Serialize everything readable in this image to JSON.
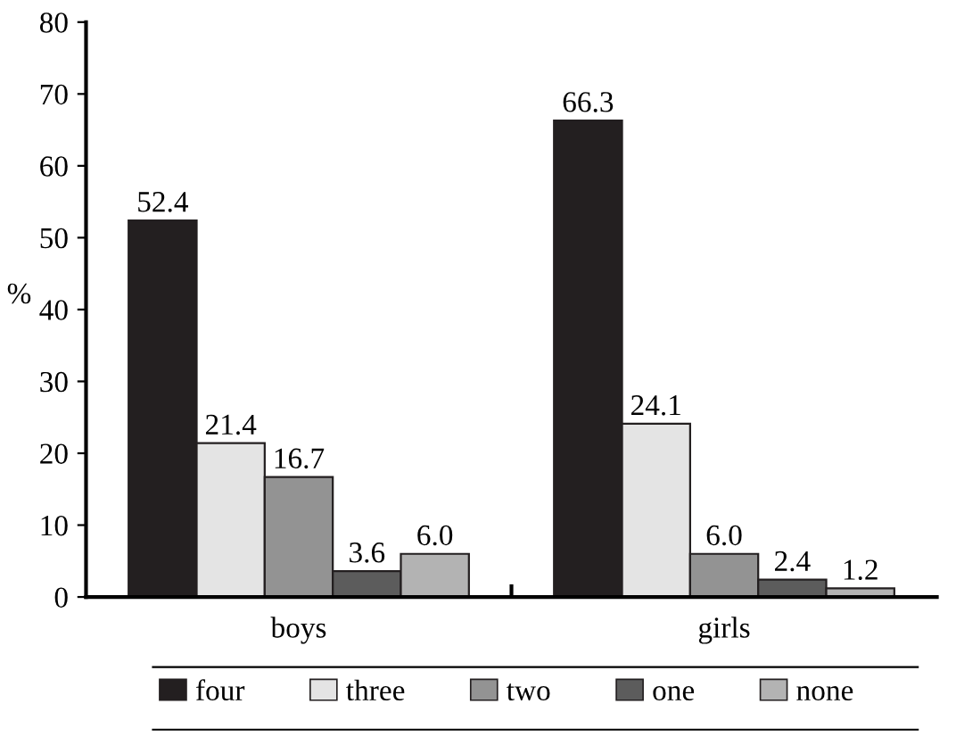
{
  "chart_data": {
    "type": "bar",
    "ylabel": "%",
    "categories": [
      "boys",
      "girls"
    ],
    "series": [
      {
        "name": "four",
        "color": "#231f20",
        "values": [
          52.4,
          66.3
        ],
        "value_labels": [
          "52.4",
          "66.3"
        ]
      },
      {
        "name": "three",
        "color": "#e4e4e4",
        "values": [
          21.4,
          24.1
        ],
        "value_labels": [
          "21.4",
          "24.1"
        ]
      },
      {
        "name": "two",
        "color": "#939393",
        "values": [
          16.7,
          6.0
        ],
        "value_labels": [
          "16.7",
          "6.0"
        ]
      },
      {
        "name": "one",
        "color": "#5c5c5c",
        "values": [
          3.6,
          2.4
        ],
        "value_labels": [
          "3.6",
          "2.4"
        ]
      },
      {
        "name": "none",
        "color": "#b3b3b3",
        "values": [
          6.0,
          1.2
        ],
        "value_labels": [
          "6.0",
          "1.2"
        ]
      }
    ],
    "ylim": [
      0,
      80
    ],
    "yticks": [
      0,
      10,
      20,
      30,
      40,
      50,
      60,
      70,
      80
    ],
    "grid": false,
    "legend": "bottom"
  }
}
